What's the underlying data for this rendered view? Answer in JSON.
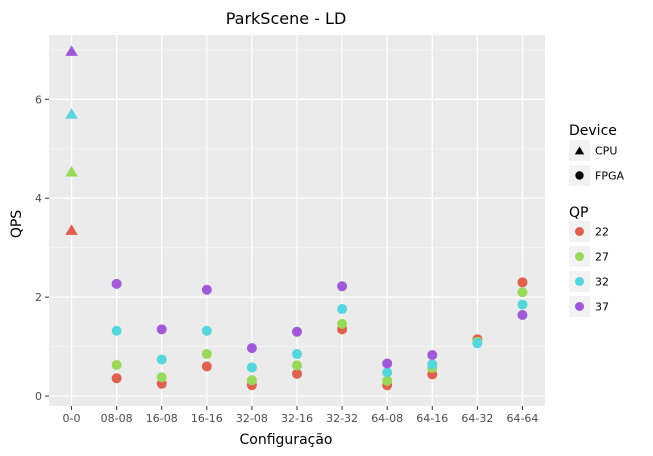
{
  "chart_data": {
    "type": "scatter",
    "title": "ParkScene - LD",
    "xlabel": "Configuração",
    "ylabel": "QPS",
    "categories": [
      "0-0",
      "08-08",
      "16-08",
      "16-16",
      "32-08",
      "32-16",
      "32-32",
      "64-08",
      "64-16",
      "64-32",
      "64-64"
    ],
    "ylim": [
      -0.2,
      7.3
    ],
    "yticks": [
      0,
      2,
      4,
      6
    ],
    "grid": true,
    "legend_position": "right",
    "legends": {
      "device": {
        "title": "Device",
        "entries": [
          {
            "label": "CPU",
            "shape": "triangle"
          },
          {
            "label": "FPGA",
            "shape": "circle"
          }
        ]
      },
      "qp": {
        "title": "QP",
        "entries": [
          {
            "label": "22",
            "color": "#E06050"
          },
          {
            "label": "27",
            "color": "#9AD85A"
          },
          {
            "label": "32",
            "color": "#55D6DC"
          },
          {
            "label": "37",
            "color": "#A05AD8"
          }
        ]
      }
    },
    "series": [
      {
        "device": "CPU",
        "qp": "22",
        "points": [
          {
            "x": "0-0",
            "y": 3.35
          }
        ]
      },
      {
        "device": "CPU",
        "qp": "27",
        "points": [
          {
            "x": "0-0",
            "y": 4.53
          }
        ]
      },
      {
        "device": "CPU",
        "qp": "32",
        "points": [
          {
            "x": "0-0",
            "y": 5.7
          }
        ]
      },
      {
        "device": "CPU",
        "qp": "37",
        "points": [
          {
            "x": "0-0",
            "y": 6.97
          }
        ]
      },
      {
        "device": "FPGA",
        "qp": "22",
        "points": [
          {
            "x": "08-08",
            "y": 0.36
          },
          {
            "x": "16-08",
            "y": 0.25
          },
          {
            "x": "16-16",
            "y": 0.6
          },
          {
            "x": "32-08",
            "y": 0.22
          },
          {
            "x": "32-16",
            "y": 0.45
          },
          {
            "x": "32-32",
            "y": 1.35
          },
          {
            "x": "64-08",
            "y": 0.22
          },
          {
            "x": "64-16",
            "y": 0.44
          },
          {
            "x": "64-32",
            "y": 1.15
          },
          {
            "x": "64-64",
            "y": 2.3
          }
        ]
      },
      {
        "device": "FPGA",
        "qp": "27",
        "points": [
          {
            "x": "08-08",
            "y": 0.63
          },
          {
            "x": "16-08",
            "y": 0.38
          },
          {
            "x": "16-16",
            "y": 0.85
          },
          {
            "x": "32-08",
            "y": 0.32
          },
          {
            "x": "32-16",
            "y": 0.62
          },
          {
            "x": "32-32",
            "y": 1.46
          },
          {
            "x": "64-08",
            "y": 0.31
          },
          {
            "x": "64-16",
            "y": 0.57
          },
          {
            "x": "64-32",
            "y": 1.1
          },
          {
            "x": "64-64",
            "y": 2.1
          }
        ]
      },
      {
        "device": "FPGA",
        "qp": "32",
        "points": [
          {
            "x": "08-08",
            "y": 1.32
          },
          {
            "x": "16-08",
            "y": 0.74
          },
          {
            "x": "16-16",
            "y": 1.32
          },
          {
            "x": "32-08",
            "y": 0.58
          },
          {
            "x": "32-16",
            "y": 0.85
          },
          {
            "x": "32-32",
            "y": 1.76
          },
          {
            "x": "64-08",
            "y": 0.48
          },
          {
            "x": "64-16",
            "y": 0.64
          },
          {
            "x": "64-32",
            "y": 1.07
          },
          {
            "x": "64-64",
            "y": 1.85
          }
        ]
      },
      {
        "device": "FPGA",
        "qp": "37",
        "points": [
          {
            "x": "08-08",
            "y": 2.27
          },
          {
            "x": "16-08",
            "y": 1.35
          },
          {
            "x": "16-16",
            "y": 2.15
          },
          {
            "x": "32-08",
            "y": 0.97
          },
          {
            "x": "32-16",
            "y": 1.3
          },
          {
            "x": "32-32",
            "y": 2.22
          },
          {
            "x": "64-08",
            "y": 0.66
          },
          {
            "x": "64-16",
            "y": 0.83
          },
          {
            "x": "64-64",
            "y": 1.64
          }
        ]
      }
    ]
  }
}
